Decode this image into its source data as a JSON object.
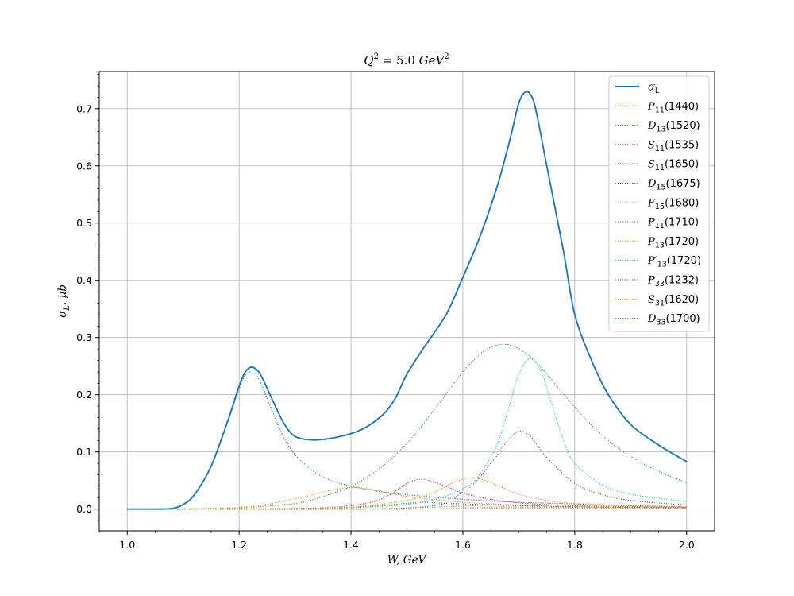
{
  "chart_data": {
    "type": "line",
    "title": "Q² = 5.0 GeV²",
    "title_parts": {
      "q": "Q",
      "sup1": "2",
      "rest": " = 5.0 ",
      "gev": "GeV",
      "sup2": "2"
    },
    "xlabel": "W, GeV",
    "ylabel": "σL, μb",
    "ylabel_parts": {
      "sigma": "σ",
      "sub": "L",
      "rest": ", μb"
    },
    "xlim": [
      0.95,
      2.05
    ],
    "ylim": [
      -0.038,
      0.765
    ],
    "xticks": [
      1.0,
      1.2,
      1.4,
      1.6,
      1.8,
      2.0
    ],
    "xtick_labels": [
      "1.0",
      "1.2",
      "1.4",
      "1.6",
      "1.8",
      "2.0"
    ],
    "yticks": [
      0.0,
      0.1,
      0.2,
      0.3,
      0.4,
      0.5,
      0.6,
      0.7
    ],
    "ytick_labels": [
      "0.0",
      "0.1",
      "0.2",
      "0.3",
      "0.4",
      "0.5",
      "0.6",
      "0.7"
    ],
    "grid": true,
    "legend_position": "top-right",
    "series": [
      {
        "name": "σL",
        "sym": "σ",
        "sub": "L",
        "mass": "",
        "color": "#1f77b4",
        "style": "solid",
        "x": [
          1.0,
          1.05,
          1.08,
          1.1,
          1.12,
          1.15,
          1.18,
          1.2,
          1.21,
          1.22,
          1.23,
          1.24,
          1.26,
          1.28,
          1.3,
          1.33,
          1.36,
          1.4,
          1.43,
          1.46,
          1.48,
          1.5,
          1.53,
          1.57,
          1.6,
          1.63,
          1.66,
          1.68,
          1.69,
          1.7,
          1.71,
          1.72,
          1.73,
          1.75,
          1.78,
          1.8,
          1.83,
          1.86,
          1.9,
          1.95,
          2.0
        ],
        "y": [
          0.0,
          0.0,
          0.001,
          0.008,
          0.025,
          0.075,
          0.155,
          0.215,
          0.238,
          0.248,
          0.245,
          0.232,
          0.19,
          0.15,
          0.127,
          0.121,
          0.123,
          0.132,
          0.145,
          0.168,
          0.195,
          0.236,
          0.282,
          0.34,
          0.405,
          0.475,
          0.56,
          0.63,
          0.67,
          0.71,
          0.728,
          0.726,
          0.7,
          0.6,
          0.45,
          0.34,
          0.26,
          0.2,
          0.148,
          0.112,
          0.083
        ]
      },
      {
        "name": "P11(1440)",
        "sym": "P",
        "sub": "11",
        "mass": "(1440)",
        "color": "#ff7f0e",
        "style": "dotted",
        "x": [
          1.0,
          1.2,
          1.3,
          1.35,
          1.38,
          1.4,
          1.42,
          1.45,
          1.5,
          1.6,
          1.7,
          1.8,
          2.0
        ],
        "y": [
          0.0,
          0.003,
          0.018,
          0.03,
          0.036,
          0.038,
          0.037,
          0.032,
          0.022,
          0.012,
          0.007,
          0.004,
          0.002
        ]
      },
      {
        "name": "D13(1520)",
        "sym": "D",
        "sub": "13",
        "mass": "(1520)",
        "color": "#2ca02c",
        "style": "dotted",
        "x": [
          1.0,
          1.2,
          1.3,
          1.4,
          1.45,
          1.5,
          1.52,
          1.55,
          1.6,
          1.7,
          1.8,
          2.0
        ],
        "y": [
          0.0,
          0.0,
          0.001,
          0.003,
          0.006,
          0.01,
          0.012,
          0.011,
          0.009,
          0.006,
          0.004,
          0.002
        ]
      },
      {
        "name": "S11(1535)",
        "sym": "S",
        "sub": "11",
        "mass": "(1535)",
        "color": "#d62728",
        "style": "dotted",
        "x": [
          1.0,
          1.3,
          1.4,
          1.45,
          1.48,
          1.5,
          1.52,
          1.54,
          1.57,
          1.6,
          1.65,
          1.7,
          1.8,
          2.0
        ],
        "y": [
          0.0,
          0.001,
          0.006,
          0.016,
          0.032,
          0.045,
          0.052,
          0.05,
          0.04,
          0.028,
          0.017,
          0.011,
          0.006,
          0.003
        ]
      },
      {
        "name": "S11(1650)",
        "sym": "S",
        "sub": "11",
        "mass": "(1650)",
        "color": "#9467bd",
        "style": "dotted",
        "x": [
          1.0,
          1.4,
          1.5,
          1.6,
          1.65,
          1.7,
          1.8,
          2.0
        ],
        "y": [
          0.0,
          0.0,
          0.002,
          0.005,
          0.007,
          0.006,
          0.004,
          0.002
        ]
      },
      {
        "name": "D15(1675)",
        "sym": "D",
        "sub": "15",
        "mass": "(1675)",
        "color": "#8c564b",
        "style": "dotted",
        "x": [
          1.0,
          1.5,
          1.6,
          1.65,
          1.68,
          1.7,
          1.72,
          1.75,
          1.8,
          1.85,
          1.9,
          2.0
        ],
        "y": [
          0.0,
          0.002,
          0.03,
          0.08,
          0.12,
          0.136,
          0.128,
          0.09,
          0.045,
          0.025,
          0.015,
          0.007
        ]
      },
      {
        "name": "F15(1680)",
        "sym": "F",
        "sub": "15",
        "mass": "(1680)",
        "color": "#e377c2",
        "style": "dotted",
        "x": [
          1.0,
          1.5,
          1.6,
          1.68,
          1.75,
          1.85,
          2.0
        ],
        "y": [
          0.0,
          0.0,
          0.002,
          0.004,
          0.003,
          0.002,
          0.001
        ]
      },
      {
        "name": "P11(1710)",
        "sym": "P",
        "sub": "11",
        "mass": "(1710)",
        "color": "#7f7f7f",
        "style": "dotted",
        "x": [
          1.0,
          1.5,
          1.6,
          1.7,
          1.8,
          2.0
        ],
        "y": [
          0.0,
          0.0,
          0.001,
          0.002,
          0.002,
          0.001
        ]
      },
      {
        "name": "P13(1720)",
        "sym": "P",
        "sub": "13",
        "mass": "(1720)",
        "color": "#bcbd22",
        "style": "dotted",
        "x": [
          1.0,
          1.5,
          1.6,
          1.7,
          1.8,
          2.0
        ],
        "y": [
          0.0,
          0.0,
          0.001,
          0.003,
          0.002,
          0.001
        ]
      },
      {
        "name": "P'13(1720)",
        "sym": "P′",
        "sub": "13",
        "mass": "(1720)",
        "color": "#17becf",
        "style": "dotted",
        "x": [
          1.0,
          1.3,
          1.4,
          1.5,
          1.55,
          1.6,
          1.63,
          1.66,
          1.68,
          1.7,
          1.72,
          1.74,
          1.76,
          1.78,
          1.8,
          1.85,
          1.9,
          2.0
        ],
        "y": [
          0.0,
          0.0,
          0.002,
          0.008,
          0.017,
          0.035,
          0.06,
          0.11,
          0.17,
          0.235,
          0.263,
          0.24,
          0.18,
          0.12,
          0.08,
          0.042,
          0.026,
          0.013
        ]
      },
      {
        "name": "P33(1232)",
        "sym": "P",
        "sub": "33",
        "mass": "(1232)",
        "color": "#1f77b4",
        "style": "dotted",
        "x": [
          1.0,
          1.05,
          1.08,
          1.1,
          1.12,
          1.15,
          1.18,
          1.2,
          1.21,
          1.22,
          1.23,
          1.24,
          1.26,
          1.28,
          1.3,
          1.33,
          1.36,
          1.4,
          1.45,
          1.5,
          1.6,
          1.7,
          1.8,
          1.9,
          2.0
        ],
        "y": [
          0.0,
          0.0,
          0.001,
          0.008,
          0.025,
          0.075,
          0.153,
          0.21,
          0.232,
          0.24,
          0.235,
          0.218,
          0.17,
          0.125,
          0.095,
          0.068,
          0.052,
          0.04,
          0.031,
          0.025,
          0.017,
          0.012,
          0.009,
          0.006,
          0.004
        ]
      },
      {
        "name": "S31(1620)",
        "sym": "S",
        "sub": "31",
        "mass": "(1620)",
        "color": "#ff7f0e",
        "style": "dotted",
        "x": [
          1.0,
          1.3,
          1.4,
          1.5,
          1.55,
          1.58,
          1.6,
          1.62,
          1.64,
          1.67,
          1.7,
          1.75,
          1.8,
          1.9,
          2.0
        ],
        "y": [
          0.0,
          0.0,
          0.003,
          0.015,
          0.03,
          0.045,
          0.052,
          0.055,
          0.05,
          0.038,
          0.026,
          0.015,
          0.01,
          0.005,
          0.003
        ]
      },
      {
        "name": "D33(1700)",
        "sym": "D",
        "sub": "33",
        "mass": "(1700)",
        "color": "#2ca02c",
        "style": "dotted",
        "x": [
          1.0,
          1.1,
          1.2,
          1.3,
          1.35,
          1.4,
          1.45,
          1.5,
          1.55,
          1.6,
          1.63,
          1.65,
          1.67,
          1.69,
          1.71,
          1.73,
          1.75,
          1.8,
          1.85,
          1.9,
          1.95,
          2.0
        ],
        "y": [
          0.0,
          0.0,
          0.002,
          0.01,
          0.022,
          0.04,
          0.07,
          0.115,
          0.175,
          0.24,
          0.27,
          0.283,
          0.288,
          0.285,
          0.274,
          0.258,
          0.236,
          0.178,
          0.128,
          0.092,
          0.066,
          0.046
        ]
      }
    ]
  }
}
